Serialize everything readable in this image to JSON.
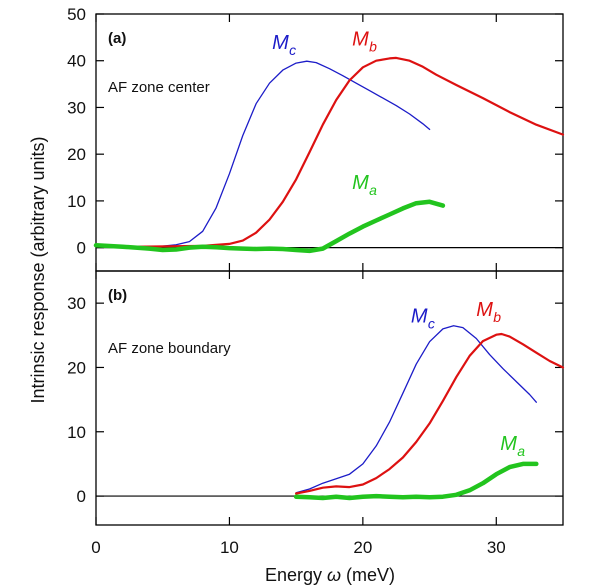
{
  "chart_data": {
    "type": "line",
    "xlabel_main": "Energy ",
    "xlabel_symbol": "ω",
    "xlabel_unit": " (meV)",
    "ylabel": "Intrinsic response (arbitrary units)",
    "xlim": [
      0,
      35
    ],
    "xticks": [
      "0",
      "10",
      "20",
      "30"
    ],
    "xtick_values": [
      0,
      10,
      20,
      30
    ],
    "colors": {
      "Mc": "#1c1cc8",
      "Mb": "#dd1111",
      "Ma": "#22c41e",
      "axis": "#000000"
    },
    "panels": [
      {
        "label": "(b)",
        "caption": "AF zone boundary",
        "ylim": [
          -4.5,
          35
        ],
        "yticks": [
          "0",
          "10",
          "20",
          "30"
        ],
        "ytick_values": [
          0,
          10,
          20,
          30
        ],
        "series": [
          {
            "key": "Mc",
            "main": "M",
            "sub": "c",
            "width": 1.3,
            "label_pos": [
              23.6,
              27
            ],
            "points": [
              [
                15,
                0.5
              ],
              [
                16,
                1.1
              ],
              [
                17,
                2.0
              ],
              [
                18,
                2.7
              ],
              [
                19,
                3.4
              ],
              [
                20,
                5.0
              ],
              [
                21,
                7.8
              ],
              [
                22,
                11.5
              ],
              [
                23,
                16.0
              ],
              [
                24,
                20.5
              ],
              [
                25,
                24.0
              ],
              [
                26,
                26.0
              ],
              [
                26.8,
                26.5
              ],
              [
                27.5,
                26.2
              ],
              [
                28.5,
                24.5
              ],
              [
                29.5,
                22.0
              ],
              [
                30.5,
                19.8
              ],
              [
                31.5,
                17.8
              ],
              [
                32.5,
                15.8
              ],
              [
                33,
                14.6
              ]
            ]
          },
          {
            "key": "Mb",
            "main": "M",
            "sub": "b",
            "width": 2.2,
            "label_pos": [
              28.5,
              28
            ],
            "points": [
              [
                15,
                0.4
              ],
              [
                16,
                0.8
              ],
              [
                17,
                1.3
              ],
              [
                18,
                1.5
              ],
              [
                19,
                1.4
              ],
              [
                20,
                1.8
              ],
              [
                21,
                2.8
              ],
              [
                22,
                4.2
              ],
              [
                23,
                6.0
              ],
              [
                24,
                8.4
              ],
              [
                25,
                11.3
              ],
              [
                26,
                14.8
              ],
              [
                27,
                18.5
              ],
              [
                28,
                21.8
              ],
              [
                29,
                24.1
              ],
              [
                30,
                25.1
              ],
              [
                30.4,
                25.2
              ],
              [
                31,
                24.8
              ],
              [
                32,
                23.6
              ],
              [
                33,
                22.3
              ],
              [
                34,
                21.0
              ],
              [
                35,
                20.0
              ]
            ]
          },
          {
            "key": "Ma",
            "main": "M",
            "sub": "a",
            "width": 4.5,
            "label_pos": [
              30.3,
              7.2
            ],
            "points": [
              [
                15,
                -0.1
              ],
              [
                16,
                -0.2
              ],
              [
                17,
                -0.3
              ],
              [
                18,
                -0.1
              ],
              [
                19,
                -0.3
              ],
              [
                20,
                -0.1
              ],
              [
                21,
                0.0
              ],
              [
                22,
                -0.1
              ],
              [
                23,
                -0.2
              ],
              [
                24,
                -0.1
              ],
              [
                25,
                -0.2
              ],
              [
                26,
                -0.1
              ],
              [
                27,
                0.2
              ],
              [
                28,
                0.9
              ],
              [
                29,
                2.0
              ],
              [
                30,
                3.4
              ],
              [
                31,
                4.5
              ],
              [
                32,
                5.0
              ],
              [
                33,
                5.0
              ]
            ]
          }
        ]
      },
      {
        "label": "(a)",
        "caption": "AF zone center",
        "ylim": [
          -5,
          50
        ],
        "yticks": [
          "0",
          "10",
          "20",
          "30",
          "40",
          "50"
        ],
        "ytick_values": [
          0,
          10,
          20,
          30,
          40,
          50
        ],
        "series": [
          {
            "key": "Mc",
            "main": "M",
            "sub": "c",
            "width": 1.3,
            "label_pos": [
              13.2,
              42.5
            ],
            "points": [
              [
                0,
                0.5
              ],
              [
                2,
                0.3
              ],
              [
                4,
                0.2
              ],
              [
                5,
                0.3
              ],
              [
                6,
                0.6
              ],
              [
                7,
                1.3
              ],
              [
                8,
                3.5
              ],
              [
                9,
                8.5
              ],
              [
                10,
                15.8
              ],
              [
                11,
                24.0
              ],
              [
                12,
                30.8
              ],
              [
                13,
                35.2
              ],
              [
                14,
                38.0
              ],
              [
                15,
                39.5
              ],
              [
                15.8,
                39.9
              ],
              [
                16.5,
                39.6
              ],
              [
                17.5,
                38.3
              ],
              [
                18.5,
                36.8
              ],
              [
                19.5,
                35.2
              ],
              [
                20.5,
                33.6
              ],
              [
                21.5,
                32.0
              ],
              [
                22.5,
                30.4
              ],
              [
                23.5,
                28.6
              ],
              [
                24.5,
                26.5
              ],
              [
                25,
                25.3
              ]
            ]
          },
          {
            "key": "Mb",
            "main": "M",
            "sub": "b",
            "width": 2.2,
            "label_pos": [
              19.2,
              43.3
            ],
            "points": [
              [
                0,
                0.3
              ],
              [
                3,
                0.2
              ],
              [
                6,
                0.3
              ],
              [
                8,
                0.4
              ],
              [
                10,
                0.8
              ],
              [
                11,
                1.5
              ],
              [
                12,
                3.2
              ],
              [
                13,
                6.0
              ],
              [
                14,
                9.8
              ],
              [
                15,
                14.6
              ],
              [
                16,
                20.4
              ],
              [
                17,
                26.3
              ],
              [
                18,
                31.6
              ],
              [
                19,
                35.8
              ],
              [
                20,
                38.6
              ],
              [
                21,
                40.0
              ],
              [
                22,
                40.5
              ],
              [
                22.5,
                40.6
              ],
              [
                23.5,
                40.0
              ],
              [
                24.5,
                38.7
              ],
              [
                25.5,
                37.0
              ],
              [
                27,
                34.8
              ],
              [
                29,
                32.0
              ],
              [
                31,
                29.0
              ],
              [
                33,
                26.3
              ],
              [
                35,
                24.2
              ]
            ]
          },
          {
            "key": "Ma",
            "main": "M",
            "sub": "a",
            "width": 4.5,
            "label_pos": [
              19.2,
              12.5
            ],
            "points": [
              [
                0,
                0.5
              ],
              [
                2,
                0.2
              ],
              [
                4,
                -0.2
              ],
              [
                5,
                -0.5
              ],
              [
                6,
                -0.4
              ],
              [
                7,
                0.0
              ],
              [
                8,
                0.2
              ],
              [
                9,
                0.1
              ],
              [
                10,
                -0.1
              ],
              [
                11,
                -0.2
              ],
              [
                12,
                -0.3
              ],
              [
                13,
                -0.2
              ],
              [
                14,
                -0.3
              ],
              [
                15,
                -0.5
              ],
              [
                16,
                -0.7
              ],
              [
                17,
                -0.2
              ],
              [
                18,
                1.4
              ],
              [
                19,
                3.0
              ],
              [
                20,
                4.5
              ],
              [
                21,
                5.8
              ],
              [
                22,
                7.1
              ],
              [
                23,
                8.4
              ],
              [
                24,
                9.5
              ],
              [
                25,
                9.8
              ],
              [
                25.5,
                9.4
              ],
              [
                26,
                9.0
              ]
            ]
          }
        ]
      }
    ]
  }
}
